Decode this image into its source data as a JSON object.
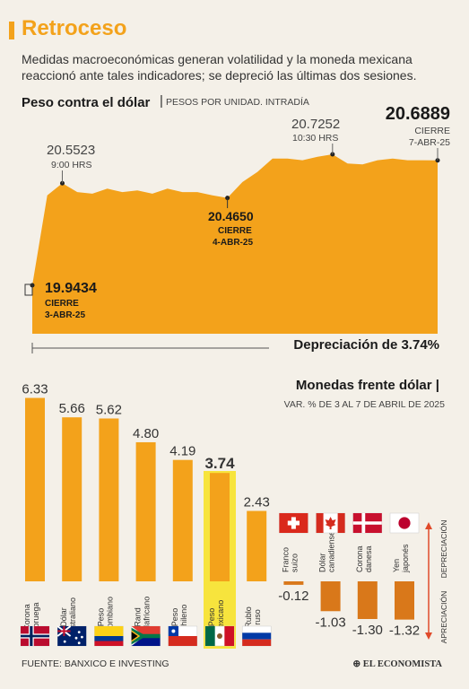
{
  "header": {
    "title": "Retroceso",
    "subtitle": "Medidas macroeconómicas generan volatilidad  y la moneda mexicana reaccionó ante tales indicadores; se depreció las últimas dos sesiones."
  },
  "colors": {
    "accent": "#f3a21b",
    "negative": "#d9781a",
    "highlight": "#f7e22a",
    "background": "#f4f0e8"
  },
  "chart_data": [
    {
      "type": "area",
      "title": "Peso contra el dólar",
      "subtitle": "PESOS POR UNIDAD. INTRADÍA",
      "y": [
        19.9434,
        20.48,
        20.5523,
        20.5,
        20.49,
        20.52,
        20.5,
        20.51,
        20.49,
        20.52,
        20.5,
        20.5,
        20.48,
        20.465,
        20.56,
        20.62,
        20.7,
        20.7,
        20.69,
        20.71,
        20.7252,
        20.67,
        20.665,
        20.69,
        20.7,
        20.69,
        20.69,
        20.6889
      ],
      "annotations": [
        {
          "value": "19.9434",
          "label": "CIERRE",
          "date": "3-ABR-25"
        },
        {
          "value": "20.5523",
          "label": "9:00 HRS"
        },
        {
          "value": "20.4650",
          "label": "CIERRE",
          "date": "4-ABR-25"
        },
        {
          "value": "20.7252",
          "label": "10:30 HRS"
        },
        {
          "value": "20.6889",
          "label": "CIERRE",
          "date": "7-ABR-25"
        }
      ],
      "footnote": "Depreciación de 3.74%"
    },
    {
      "type": "bar",
      "title": "Monedas frente dólar",
      "subtitle": "VAR. % DE 3 AL 7 DE ABRIL DE 2025",
      "categories": [
        "Corona noruega",
        "Dólar australiano",
        "Peso colombiano",
        "Rand sudafricano",
        "Peso chileno",
        "Peso mexicano",
        "Rublo ruso",
        "Franco suizo",
        "Dólar canadiense",
        "Corona danesa",
        "Yen japonés"
      ],
      "values": [
        6.33,
        5.66,
        5.62,
        4.8,
        4.19,
        3.74,
        2.43,
        -0.12,
        -1.03,
        -1.3,
        -1.32
      ],
      "value_labels": [
        "6.33",
        "5.66",
        "5.62",
        "4.80",
        "4.19",
        "3.74",
        "2.43",
        "-0.12",
        "-1.03",
        "-1.30",
        "-1.32"
      ],
      "highlight": "Peso mexicano",
      "axis_labels": {
        "positive": "DEPRECIACIÓN",
        "negative": "APRECIACIÓN"
      },
      "flags": [
        "flag-norway",
        "flag-australia",
        "flag-colombia",
        "flag-south-africa",
        "flag-chile",
        "flag-mexico",
        "flag-russia",
        "flag-switzerland",
        "flag-canada",
        "flag-denmark",
        "flag-japan"
      ]
    }
  ],
  "footer": {
    "source": "FUENTE: BANXICO E INVESTING",
    "brand": "EL ECONOMISTA"
  }
}
